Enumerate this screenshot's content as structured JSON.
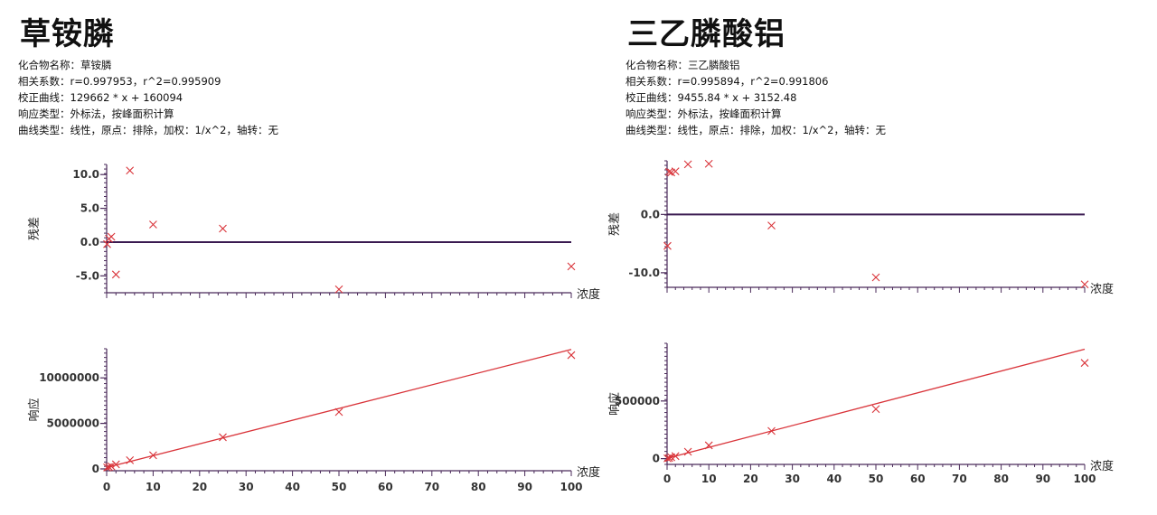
{
  "panels": [
    {
      "title": "草铵膦",
      "meta": [
        "化合物名称：草铵膦",
        "相关系数：r=0.997953，r^2=0.995909",
        "校正曲线：129662 * x + 160094",
        "响应类型：外标法，按峰面积计算",
        "曲线类型：线性，原点：排除，加权：1/x^2，轴转：无"
      ]
    },
    {
      "title": "三乙膦酸铝",
      "meta": [
        "化合物名称：三乙膦酸铝",
        "相关系数：r=0.995894，r^2=0.991806",
        "校正曲线：9455.84 * x + 3152.48",
        "响应类型：外标法，按峰面积计算",
        "曲线类型：线性，原点：排除，加权：1/x^2，轴转：无"
      ]
    }
  ],
  "colors": {
    "axis": "#4a2a5a",
    "baseline": "#3a1a50",
    "marker": "#d9343a",
    "fitline": "#d9343a"
  },
  "chart_data": [
    {
      "type": "scatter",
      "panel": "草铵膦",
      "xlabel": "浓度",
      "ylabel": "残差",
      "ylim": [
        -7.5,
        11.5
      ],
      "yticks": [
        10.0,
        5.0,
        0.0,
        -5.0
      ],
      "ytick_labels": [
        "10.0",
        "5.0",
        "0.0",
        "-5.0"
      ],
      "baseline": 0,
      "points": [
        [
          0.1,
          -0.3
        ],
        [
          0.5,
          0.5
        ],
        [
          1,
          0.8
        ],
        [
          2,
          -4.8
        ],
        [
          5,
          10.6
        ],
        [
          10,
          2.6
        ],
        [
          25,
          2.0
        ],
        [
          50,
          -7.0
        ],
        [
          100,
          -3.6
        ]
      ]
    },
    {
      "type": "scatter",
      "panel": "草铵膦",
      "xlabel": "浓度",
      "ylabel": "响应",
      "ylim": [
        -200000,
        13200000
      ],
      "yticks": [
        10000000,
        5000000,
        0
      ],
      "ytick_labels": [
        "10000000",
        "5000000",
        "0"
      ],
      "xticks": [
        0,
        10,
        20,
        30,
        40,
        50,
        60,
        70,
        80,
        90,
        100
      ],
      "xtick_labels": [
        "0",
        "10",
        "20",
        "30",
        "40",
        "50",
        "60",
        "70",
        "80",
        "90",
        "100"
      ],
      "fit": {
        "slope": 129662,
        "intercept": 160094
      },
      "points": [
        [
          0.1,
          160000
        ],
        [
          0.5,
          210000
        ],
        [
          1,
          280000
        ],
        [
          2,
          500000
        ],
        [
          5,
          950000
        ],
        [
          10,
          1500000
        ],
        [
          25,
          3480000
        ],
        [
          50,
          6250000
        ],
        [
          100,
          12500000
        ]
      ]
    },
    {
      "type": "scatter",
      "panel": "三乙膦酸铝",
      "xlabel": "浓度",
      "ylabel": "残差",
      "ylim": [
        -12.5,
        9.2
      ],
      "yticks": [
        0.0,
        -10.0
      ],
      "ytick_labels": [
        "0.0",
        "-10.0"
      ],
      "baseline": 0,
      "points": [
        [
          0.1,
          -5.4
        ],
        [
          0.5,
          7.3
        ],
        [
          1,
          7.2
        ],
        [
          2,
          7.4
        ],
        [
          5,
          8.6
        ],
        [
          10,
          8.7
        ],
        [
          25,
          -1.9
        ],
        [
          50,
          -10.8
        ],
        [
          100,
          -12.0
        ]
      ]
    },
    {
      "type": "scatter",
      "panel": "三乙膦酸铝",
      "xlabel": "浓度",
      "ylabel": "响应",
      "ylim": [
        -50000,
        1000000
      ],
      "yticks": [
        500000,
        0
      ],
      "ytick_labels": [
        "500000",
        "0"
      ],
      "xticks": [
        0,
        10,
        20,
        30,
        40,
        50,
        60,
        70,
        80,
        90,
        100
      ],
      "xtick_labels": [
        "0",
        "10",
        "20",
        "30",
        "40",
        "50",
        "60",
        "70",
        "80",
        "90",
        "100"
      ],
      "fit": {
        "slope": 9455.84,
        "intercept": 3152.48
      },
      "points": [
        [
          0.1,
          3000
        ],
        [
          0.5,
          6000
        ],
        [
          1,
          12000
        ],
        [
          2,
          22000
        ],
        [
          5,
          60000
        ],
        [
          10,
          115000
        ],
        [
          25,
          240000
        ],
        [
          50,
          430000
        ],
        [
          100,
          830000
        ]
      ]
    }
  ]
}
